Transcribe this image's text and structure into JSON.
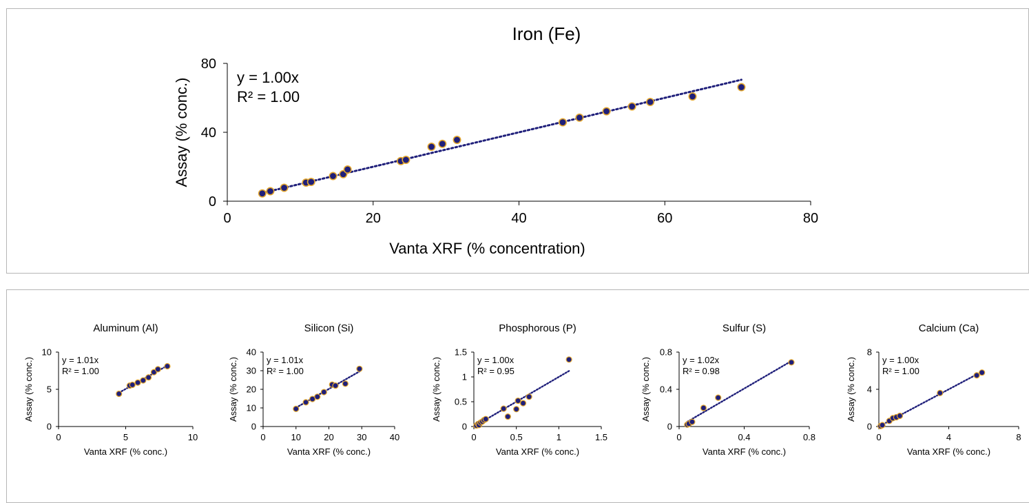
{
  "colors": {
    "marker_fill": "#1f1f7a",
    "marker_edge": "#e3a72f",
    "trendline": "#1f1f7a",
    "axis": "#000000"
  },
  "chart_data": [
    {
      "type": "scatter",
      "title": "Iron (Fe)",
      "xlabel": "Vanta XRF (% concentration)",
      "ylabel": "Assay (% conc.)",
      "xlim": [
        0,
        80
      ],
      "ylim": [
        0,
        80
      ],
      "xticks": [
        0,
        20,
        40,
        60,
        80
      ],
      "yticks": [
        0,
        40,
        80
      ],
      "equation": "y = 1.00x",
      "r2": "R² = 1.00",
      "trend_slope": 1.0,
      "grid": false,
      "x": [
        4.8,
        5.9,
        7.8,
        10.8,
        11.5,
        14.5,
        15.9,
        16.5,
        23.8,
        24.5,
        28.0,
        29.5,
        31.5,
        46.0,
        48.3,
        52.0,
        55.5,
        58.0,
        63.8,
        70.5
      ],
      "y": [
        4.5,
        5.8,
        7.8,
        10.8,
        11.2,
        14.6,
        15.7,
        18.4,
        23.3,
        24.0,
        31.6,
        33.3,
        35.6,
        45.8,
        48.5,
        52.2,
        55.0,
        57.6,
        60.8,
        66.2
      ]
    },
    {
      "type": "scatter",
      "title": "Aluminum (Al)",
      "xlabel": "Vanta XRF (% conc.)",
      "ylabel": "Assay (% conc.)",
      "xlim": [
        0,
        10
      ],
      "ylim": [
        0,
        10
      ],
      "xticks": [
        0,
        5,
        10
      ],
      "yticks": [
        0,
        5,
        10
      ],
      "equation": "y = 1.01x",
      "r2": "R² = 1.00",
      "trend_slope": 1.01,
      "grid": false,
      "x": [
        4.5,
        5.3,
        5.5,
        5.9,
        6.3,
        6.7,
        7.1,
        7.4,
        8.1
      ],
      "y": [
        4.4,
        5.5,
        5.6,
        5.9,
        6.2,
        6.6,
        7.3,
        7.7,
        8.1
      ]
    },
    {
      "type": "scatter",
      "title": "Silicon (Si)",
      "xlabel": "Vanta XRF (% conc.)",
      "ylabel": "Assay (% conc.)",
      "xlim": [
        0,
        40
      ],
      "ylim": [
        0,
        40
      ],
      "xticks": [
        0,
        10,
        20,
        30,
        40
      ],
      "yticks": [
        0,
        10,
        20,
        30,
        40
      ],
      "equation": "y = 1.01x",
      "r2": "R² = 1.00",
      "trend_slope": 1.01,
      "grid": false,
      "x": [
        10.0,
        13.0,
        15.0,
        16.5,
        18.5,
        21.0,
        22.0,
        25.0,
        29.3
      ],
      "y": [
        9.5,
        13.0,
        14.8,
        16.0,
        18.5,
        22.5,
        22.0,
        23.0,
        31.0
      ]
    },
    {
      "type": "scatter",
      "title": "Phosphorous (P)",
      "xlabel": "Vanta XRF (% conc.)",
      "ylabel": "Assay (% conc.)",
      "xlim": [
        0,
        1.5
      ],
      "ylim": [
        0,
        1.5
      ],
      "xticks": [
        "0",
        "0.5",
        "1",
        "1.5"
      ],
      "yticks": [
        "0",
        "0.5",
        "1",
        "1.5"
      ],
      "equation": "y = 1.00x",
      "r2": "R² = 0.95",
      "trend_slope": 1.0,
      "grid": false,
      "x": [
        0.03,
        0.05,
        0.06,
        0.08,
        0.1,
        0.12,
        0.14,
        0.35,
        0.4,
        0.5,
        0.52,
        0.58,
        0.65,
        1.12
      ],
      "y": [
        0.02,
        0.05,
        0.03,
        0.08,
        0.1,
        0.13,
        0.15,
        0.36,
        0.2,
        0.35,
        0.52,
        0.47,
        0.6,
        1.35
      ]
    },
    {
      "type": "scatter",
      "title": "Sulfur (S)",
      "xlabel": "Vanta XRF (% conc.)",
      "ylabel": "Assay (% conc.)",
      "xlim": [
        0,
        0.8
      ],
      "ylim": [
        0,
        0.8
      ],
      "xticks": [
        "0",
        "0.4",
        "0.8"
      ],
      "yticks": [
        "0",
        "0.4",
        "0.8"
      ],
      "equation": "y = 1.02x",
      "r2": "R² = 0.98",
      "trend_slope": 1.02,
      "grid": false,
      "x": [
        0.05,
        0.06,
        0.08,
        0.15,
        0.24,
        0.69
      ],
      "y": [
        0.02,
        0.03,
        0.05,
        0.2,
        0.31,
        0.69
      ]
    },
    {
      "type": "scatter",
      "title": "Calcium (Ca)",
      "xlabel": "Vanta XRF (% conc.)",
      "ylabel": "Assay (% conc.)",
      "xlim": [
        0,
        8
      ],
      "ylim": [
        0,
        8
      ],
      "xticks": [
        0,
        4,
        8
      ],
      "yticks": [
        0,
        4,
        8
      ],
      "equation": "y = 1.00x",
      "r2": "R² = 1.00",
      "trend_slope": 1.0,
      "grid": false,
      "x": [
        0.1,
        0.2,
        0.6,
        0.8,
        1.0,
        1.2,
        3.5,
        5.6,
        5.9
      ],
      "y": [
        0.05,
        0.15,
        0.6,
        0.9,
        1.0,
        1.15,
        3.6,
        5.5,
        5.8
      ]
    }
  ]
}
